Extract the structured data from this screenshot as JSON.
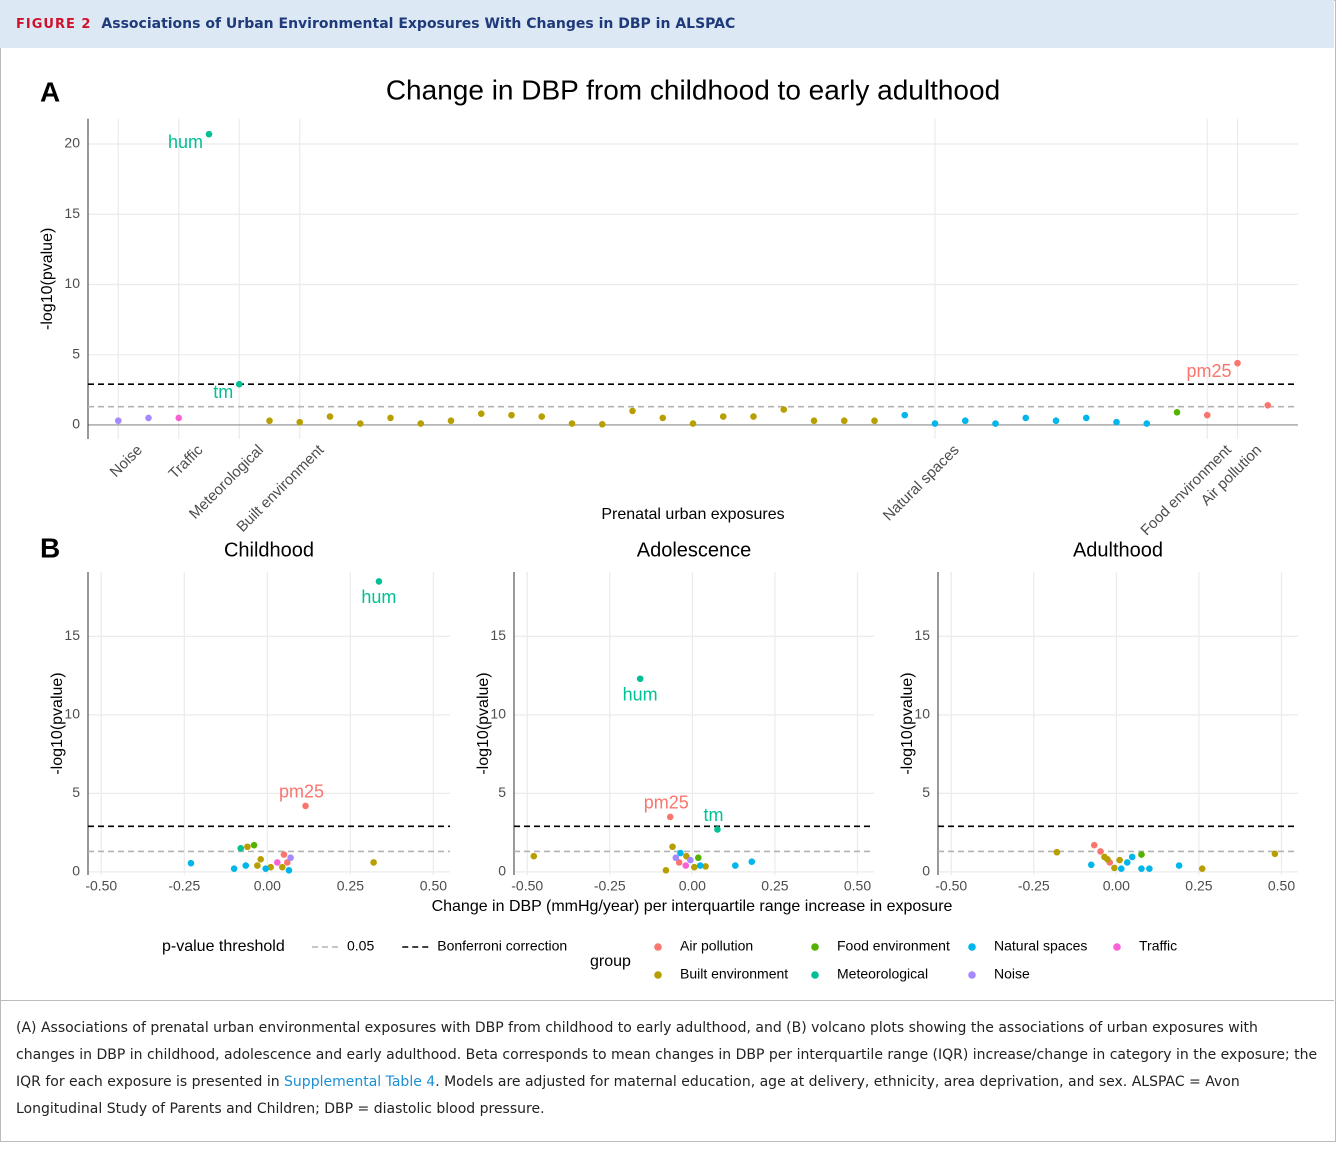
{
  "header": {
    "label": "FIGURE 2",
    "title": "Associations of Urban Environmental Exposures With Changes in DBP in ALSPAC"
  },
  "caption": {
    "before": "(A) Associations of prenatal urban environmental exposures with DBP from childhood to early adulthood, and (B) volcano plots showing the associations of urban exposures with changes in DBP in childhood, adolescence and early adulthood. Beta corresponds to mean changes in DBP per interquartile range (IQR) increase/change in category in the exposure; the IQR for each exposure is presented in ",
    "link": "Supplemental Table 4",
    "after": ". Models are adjusted for maternal education, age at delivery, ethnicity, area deprivation, and sex. ALSPAC = Avon Longitudinal Study of Parents and Children; DBP = diastolic blood pressure."
  },
  "panel_a": {
    "label": "A"
  },
  "panel_b": {
    "label": "B",
    "xlabel": "Change in DBP (mmHg/year) per interquartile range increase in exposure"
  },
  "legend": {
    "threshold_title": "p-value threshold",
    "group_title": "group",
    "thresholds": [
      {
        "name": "0.05",
        "value": 1.3,
        "color": "#b3b3b3"
      },
      {
        "name": "Bonferroni correction",
        "value": 2.9,
        "color": "#000000"
      }
    ]
  },
  "chart_data": [
    {
      "type": "scatter",
      "title": "Change in DBP from childhood to early adulthood",
      "xlabel": "Prenatal urban exposures",
      "ylabel": "-log10(pvalue)",
      "categories": [
        "Noise",
        null,
        "Traffic",
        null,
        "Meteorological",
        null,
        "Built environment",
        null,
        null,
        null,
        null,
        null,
        null,
        null,
        null,
        null,
        null,
        null,
        null,
        null,
        null,
        null,
        null,
        null,
        null,
        null,
        null,
        "Natural spaces",
        null,
        null,
        null,
        null,
        null,
        null,
        null,
        null,
        "Food environment",
        "Air pollution",
        null
      ],
      "ylim": [
        -1.0,
        21.8
      ],
      "yticks": [
        0,
        5,
        10,
        15,
        20
      ],
      "grid": true,
      "series": [
        {
          "name": "Air pollution",
          "color": "#f8766d",
          "values": [
            null,
            null,
            null,
            null,
            null,
            null,
            null,
            null,
            null,
            null,
            null,
            null,
            null,
            null,
            null,
            null,
            null,
            null,
            null,
            null,
            null,
            null,
            null,
            null,
            null,
            null,
            null,
            null,
            null,
            null,
            null,
            null,
            null,
            null,
            null,
            null,
            0.7,
            4.4,
            1.4
          ],
          "labels": [
            null,
            null,
            null,
            null,
            null,
            null,
            null,
            null,
            null,
            null,
            null,
            null,
            null,
            null,
            null,
            null,
            null,
            null,
            null,
            null,
            null,
            null,
            null,
            null,
            null,
            null,
            null,
            null,
            null,
            null,
            null,
            null,
            null,
            null,
            null,
            null,
            null,
            "pm25",
            null
          ]
        },
        {
          "name": "Built environment",
          "color": "#b79f00",
          "values": [
            null,
            null,
            null,
            null,
            null,
            0.3,
            0.2,
            0.6,
            0.1,
            0.5,
            0.1,
            0.3,
            0.8,
            0.7,
            0.6,
            0.1,
            0.05,
            1.0,
            0.5,
            0.1,
            0.6,
            0.6,
            1.1,
            0.3,
            0.3,
            0.3,
            null,
            null,
            null,
            null,
            null,
            null,
            null,
            null,
            null,
            null,
            null,
            null,
            null
          ]
        },
        {
          "name": "Food environment",
          "color": "#53b400",
          "values": [
            null,
            null,
            null,
            null,
            null,
            null,
            null,
            null,
            null,
            null,
            null,
            null,
            null,
            null,
            null,
            null,
            null,
            null,
            null,
            null,
            null,
            null,
            null,
            null,
            null,
            null,
            null,
            null,
            null,
            null,
            null,
            null,
            null,
            null,
            null,
            0.9,
            null,
            null,
            null
          ]
        },
        {
          "name": "Meteorological",
          "color": "#00c094",
          "values": [
            null,
            null,
            null,
            20.7,
            2.9,
            null,
            null,
            null,
            null,
            null,
            null,
            null,
            null,
            null,
            null,
            null,
            null,
            null,
            null,
            null,
            null,
            null,
            null,
            null,
            null,
            null,
            null,
            null,
            null,
            null,
            null,
            null,
            null,
            null,
            null,
            null,
            null,
            null,
            null
          ],
          "labels": [
            null,
            null,
            null,
            "hum",
            "tm",
            null,
            null,
            null,
            null,
            null,
            null,
            null,
            null,
            null,
            null,
            null,
            null,
            null,
            null,
            null,
            null,
            null,
            null,
            null,
            null,
            null,
            null,
            null,
            null,
            null,
            null,
            null,
            null,
            null,
            null,
            null,
            null,
            null,
            null
          ]
        },
        {
          "name": "Natural spaces",
          "color": "#00b6eb",
          "values": [
            null,
            null,
            null,
            null,
            null,
            null,
            null,
            null,
            null,
            null,
            null,
            null,
            null,
            null,
            null,
            null,
            null,
            null,
            null,
            null,
            null,
            null,
            null,
            null,
            null,
            null,
            0.7,
            0.1,
            0.3,
            0.1,
            0.5,
            0.3,
            0.5,
            0.2,
            0.1,
            null,
            null,
            null,
            null
          ]
        },
        {
          "name": "Noise",
          "color": "#a58aff",
          "values": [
            0.3,
            0.5,
            null,
            null,
            null,
            null,
            null,
            null,
            null,
            null,
            null,
            null,
            null,
            null,
            null,
            null,
            null,
            null,
            null,
            null,
            null,
            null,
            null,
            null,
            null,
            null,
            null,
            null,
            null,
            null,
            null,
            null,
            null,
            null,
            null,
            null,
            null,
            null,
            null
          ]
        },
        {
          "name": "Traffic",
          "color": "#fb61d7",
          "values": [
            null,
            null,
            0.5,
            null,
            null,
            null,
            null,
            null,
            null,
            null,
            null,
            null,
            null,
            null,
            null,
            null,
            null,
            null,
            null,
            null,
            null,
            null,
            null,
            null,
            null,
            null,
            null,
            null,
            null,
            null,
            null,
            null,
            null,
            null,
            null,
            null,
            null,
            null,
            null
          ]
        }
      ]
    },
    {
      "type": "scatter",
      "title": "Childhood",
      "ylabel": "-log10(pvalue)",
      "xlim": [
        -0.54,
        0.55
      ],
      "xticks": [
        {
          "value": -0.5,
          "label": "-0.50"
        },
        {
          "value": -0.25,
          "label": "-0.25"
        },
        {
          "value": 0,
          "label": "0.00"
        },
        {
          "value": 0.25,
          "label": "0.25"
        },
        {
          "value": 0.5,
          "label": "0.50"
        }
      ],
      "ylim": [
        -0.2,
        19.1
      ],
      "yticks": [
        0,
        5,
        10,
        15
      ],
      "grid": true,
      "series": [
        {
          "name": "Air pollution",
          "color": "#f8766d",
          "x": [
            0.115,
            0.05,
            0.06
          ],
          "values": [
            4.2,
            1.1,
            0.6
          ],
          "labels": [
            "pm25",
            null,
            null
          ]
        },
        {
          "name": "Built environment",
          "color": "#b79f00",
          "x": [
            0.32,
            -0.06,
            -0.02,
            0.01,
            0.045,
            -0.03
          ],
          "values": [
            0.6,
            1.6,
            0.8,
            0.3,
            0.3,
            0.4
          ]
        },
        {
          "name": "Food environment",
          "color": "#53b400",
          "x": [
            -0.04
          ],
          "values": [
            1.7
          ]
        },
        {
          "name": "Meteorological",
          "color": "#00c094",
          "x": [
            0.336,
            -0.08
          ],
          "values": [
            18.5,
            1.5
          ],
          "labels": [
            "hum",
            null
          ]
        },
        {
          "name": "Natural spaces",
          "color": "#00b6eb",
          "x": [
            -0.23,
            -0.065,
            -0.1,
            -0.005,
            0.065
          ],
          "values": [
            0.55,
            0.4,
            0.2,
            0.2,
            0.1
          ]
        },
        {
          "name": "Noise",
          "color": "#a58aff",
          "x": [
            0.07
          ],
          "values": [
            0.9
          ]
        },
        {
          "name": "Traffic",
          "color": "#fb61d7",
          "x": [
            0.03
          ],
          "values": [
            0.6
          ]
        }
      ]
    },
    {
      "type": "scatter",
      "title": "Adolescence",
      "ylabel": "-log10(pvalue)",
      "xlim": [
        -0.54,
        0.55
      ],
      "xticks": [
        {
          "value": -0.5,
          "label": "-0.50"
        },
        {
          "value": -0.25,
          "label": "-0.25"
        },
        {
          "value": 0,
          "label": "0.00"
        },
        {
          "value": 0.25,
          "label": "0.25"
        },
        {
          "value": 0.5,
          "label": "0.50"
        }
      ],
      "ylim": [
        -0.2,
        19.1
      ],
      "yticks": [
        0,
        5,
        10,
        15
      ],
      "grid": true,
      "series": [
        {
          "name": "Air pollution",
          "color": "#f8766d",
          "x": [
            -0.067,
            -0.04
          ],
          "values": [
            3.5,
            0.6
          ],
          "labels": [
            "pm25",
            null
          ]
        },
        {
          "name": "Built environment",
          "color": "#b79f00",
          "x": [
            -0.48,
            -0.06,
            -0.018,
            0.006,
            0.04,
            -0.08
          ],
          "values": [
            1.0,
            1.6,
            1.0,
            0.3,
            0.35,
            0.1
          ]
        },
        {
          "name": "Food environment",
          "color": "#53b400",
          "x": [
            0.018
          ],
          "values": [
            0.9
          ]
        },
        {
          "name": "Meteorological",
          "color": "#00c094",
          "x": [
            -0.158,
            0.076
          ],
          "values": [
            12.3,
            2.7
          ],
          "labels": [
            "hum",
            "tm"
          ]
        },
        {
          "name": "Natural spaces",
          "color": "#00b6eb",
          "x": [
            0.18,
            0.13,
            -0.036,
            0.024
          ],
          "values": [
            0.65,
            0.4,
            1.2,
            0.4
          ]
        },
        {
          "name": "Noise",
          "color": "#a58aff",
          "x": [
            -0.05,
            -0.006
          ],
          "values": [
            0.9,
            0.75
          ]
        },
        {
          "name": "Traffic",
          "color": "#fb61d7",
          "x": [
            -0.02
          ],
          "values": [
            0.4
          ]
        }
      ]
    },
    {
      "type": "scatter",
      "title": "Adulthood",
      "ylabel": "-log10(pvalue)",
      "xlim": [
        -0.54,
        0.55
      ],
      "xticks": [
        {
          "value": -0.5,
          "label": "-0.50"
        },
        {
          "value": -0.25,
          "label": "-0.25"
        },
        {
          "value": 0,
          "label": "0.00"
        },
        {
          "value": 0.25,
          "label": "0.25"
        },
        {
          "value": 0.5,
          "label": "0.50"
        }
      ],
      "ylim": [
        -0.2,
        19.1
      ],
      "yticks": [
        0,
        5,
        10,
        15
      ],
      "grid": true,
      "series": [
        {
          "name": "Air pollution",
          "color": "#f8766d",
          "x": [
            -0.067,
            -0.048,
            -0.02
          ],
          "values": [
            1.7,
            1.3,
            0.6
          ]
        },
        {
          "name": "Built environment",
          "color": "#b79f00",
          "x": [
            -0.18,
            0.48,
            -0.036,
            -0.027,
            0.01,
            0.26,
            -0.006
          ],
          "values": [
            1.25,
            1.15,
            0.95,
            0.8,
            0.75,
            0.2,
            0.25
          ]
        },
        {
          "name": "Food environment",
          "color": "#53b400",
          "x": [
            0.076
          ],
          "values": [
            1.1
          ]
        },
        {
          "name": "Natural spaces",
          "color": "#00b6eb",
          "x": [
            0.048,
            0.033,
            -0.076,
            0.19,
            0.1,
            0.015,
            0.076
          ],
          "values": [
            0.95,
            0.6,
            0.45,
            0.4,
            0.2,
            0.2,
            0.2
          ]
        }
      ]
    }
  ]
}
